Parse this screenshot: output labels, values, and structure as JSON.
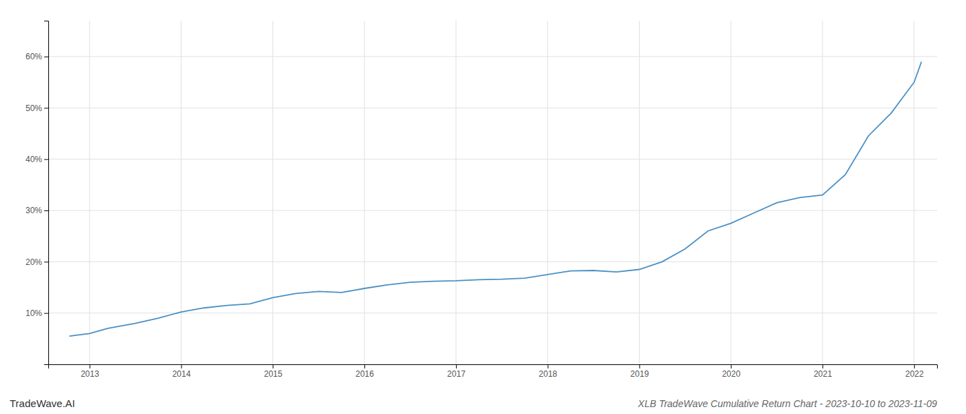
{
  "chart_data": {
    "type": "line",
    "title": "XLB TradeWave Cumulative Return Chart - 2023-10-10 to 2023-11-09",
    "annotations": [
      "TradeWave.AI"
    ],
    "x": [
      2012.78,
      2013.0,
      2013.2,
      2013.5,
      2013.75,
      2014.0,
      2014.25,
      2014.5,
      2014.75,
      2015.0,
      2015.25,
      2015.5,
      2015.75,
      2016.0,
      2016.25,
      2016.5,
      2016.75,
      2017.0,
      2017.25,
      2017.5,
      2017.75,
      2018.0,
      2018.25,
      2018.5,
      2018.75,
      2019.0,
      2019.25,
      2019.5,
      2019.75,
      2020.0,
      2020.25,
      2020.5,
      2020.75,
      2021.0,
      2021.25,
      2021.5,
      2021.75,
      2022.0,
      2022.08
    ],
    "values": [
      5.5,
      6.0,
      7.0,
      8.0,
      9.0,
      10.2,
      11.0,
      11.5,
      11.8,
      13.0,
      13.8,
      14.2,
      14.0,
      14.8,
      15.5,
      16.0,
      16.2,
      16.3,
      16.5,
      16.6,
      16.8,
      17.5,
      18.2,
      18.3,
      18.0,
      18.5,
      20.0,
      22.5,
      26.0,
      27.5,
      29.5,
      31.5,
      32.5,
      33.0,
      37.0,
      44.5,
      49.0,
      55.0,
      59.0
    ],
    "color": "#4a90c4",
    "xlim": [
      2012.55,
      2022.25
    ],
    "xticks": [
      2013,
      2014,
      2015,
      2016,
      2017,
      2018,
      2019,
      2020,
      2021,
      2022
    ],
    "ylim": [
      0,
      67
    ],
    "yticks": [
      {
        "value": 10,
        "label": "10%"
      },
      {
        "value": 20,
        "label": "20%"
      },
      {
        "value": 30,
        "label": "30%"
      },
      {
        "value": 40,
        "label": "40%"
      },
      {
        "value": 50,
        "label": "50%"
      },
      {
        "value": 60,
        "label": "60%"
      }
    ],
    "grid": true
  }
}
